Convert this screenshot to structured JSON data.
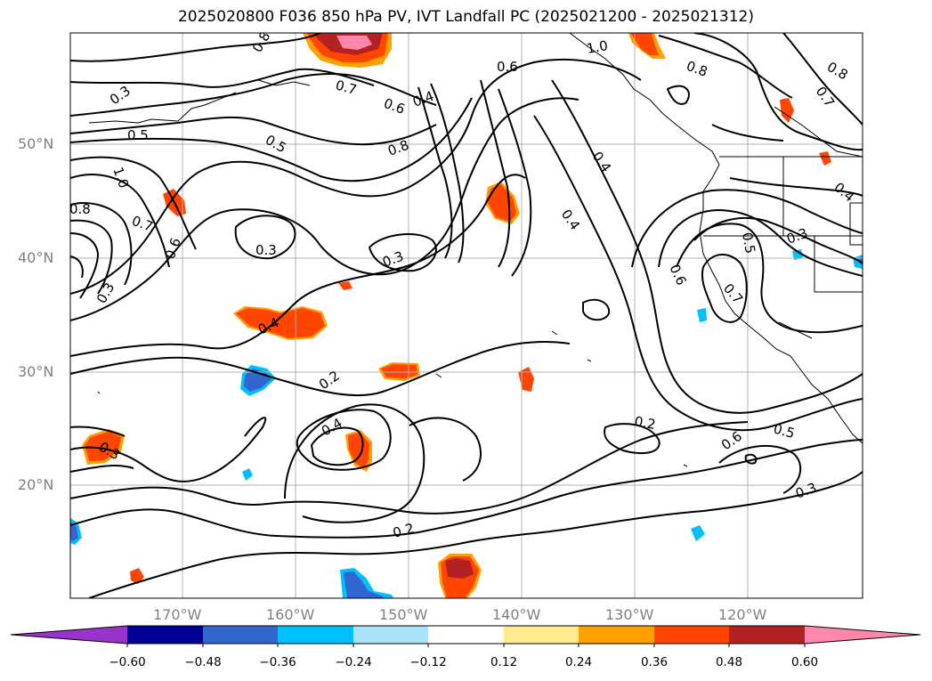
{
  "title": "2025020800 F036 850 hPa PV, IVT Landfall PC (2025021200 - 2025021312)",
  "lat_labels": [
    "50°N",
    "40°N",
    "30°N",
    "20°N"
  ],
  "lon_labels": [
    "170°W",
    "160°W",
    "150°W",
    "140°W",
    "130°W",
    "120°W"
  ],
  "colorbar": {
    "colors": [
      "#9933cc",
      "#000099",
      "#3366cc",
      "#00bfff",
      "#ace1fa",
      "#ffffff",
      "#ffea8e",
      "#ffa000",
      "#ff4500",
      "#b22222",
      "#ff88aa"
    ],
    "ticks": [
      "−0.60",
      "−0.48",
      "−0.36",
      "−0.24",
      "−0.12",
      "0.12",
      "0.24",
      "0.36",
      "0.48",
      "0.60"
    ]
  },
  "contour_labels": [
    "0.8",
    "0.3",
    "0.5",
    "1.0",
    "0.8",
    "0.7",
    "0.6",
    "0.3",
    "0.7",
    "0.6",
    "0.4",
    "0.5",
    "0.8",
    "0.3",
    "0.3",
    "0.4",
    "0.6",
    "1.0",
    "0.8",
    "0.4",
    "0.4",
    "0.8",
    "0.7",
    "0.4",
    "0.3",
    "0.5",
    "0.6",
    "0.7",
    "0.2",
    "0.4",
    "0.3",
    "0.2",
    "0.2",
    "0.6",
    "0.5",
    "0.3"
  ]
}
